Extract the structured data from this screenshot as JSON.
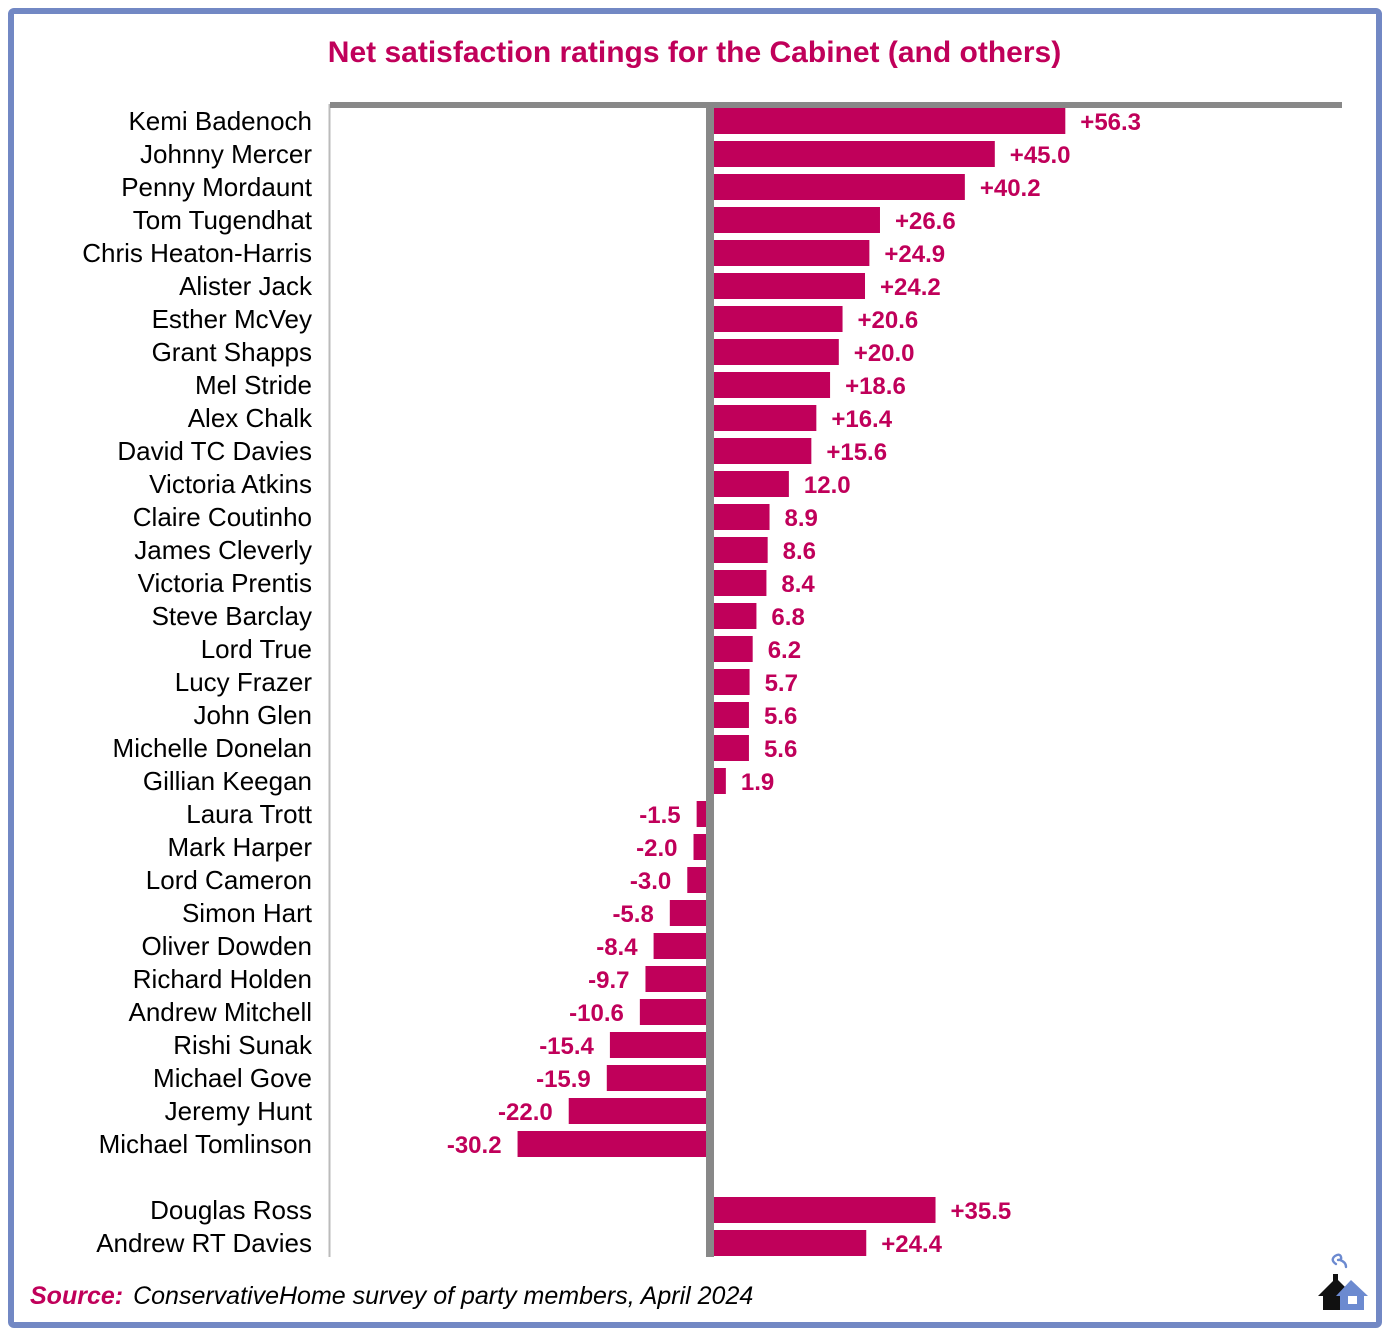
{
  "title": "Net satisfaction ratings for the Cabinet (and others)",
  "source": {
    "label": "Source:",
    "text": "ConservativeHome survey of party members, April 2024"
  },
  "logo": {
    "icon": "conservativehome-house-icon"
  },
  "colors": {
    "bar": "#C0005A",
    "title": "#C0005A",
    "axis": "#888888",
    "frame": "#7288C4"
  },
  "chart_data": {
    "type": "bar",
    "orientation": "horizontal",
    "title": "Net satisfaction ratings for the Cabinet (and others)",
    "xlabel": "",
    "ylabel": "",
    "grid": false,
    "legend": "none",
    "xlim": [
      -60,
      100
    ],
    "groups": [
      {
        "name": "Cabinet",
        "categories": [
          "Kemi Badenoch",
          "Johnny Mercer",
          "Penny Mordaunt",
          "Tom Tugendhat",
          "Chris Heaton-Harris",
          "Alister Jack",
          "Esther McVey",
          "Grant Shapps",
          "Mel Stride",
          "Alex Chalk",
          "David TC Davies",
          "Victoria Atkins",
          "Claire Coutinho",
          "James Cleverly",
          "Victoria Prentis",
          "Steve Barclay",
          "Lord True",
          "Lucy Frazer",
          "John Glen",
          "Michelle Donelan",
          "Gillian Keegan",
          "Laura Trott",
          "Mark Harper",
          "Lord Cameron",
          "Simon Hart",
          "Oliver Dowden",
          "Richard Holden",
          "Andrew Mitchell",
          "Rishi Sunak",
          "Michael Gove",
          "Jeremy Hunt",
          "Michael Tomlinson"
        ],
        "values": [
          56.3,
          45.0,
          40.2,
          26.6,
          24.9,
          24.2,
          20.6,
          20.0,
          18.6,
          16.4,
          15.6,
          12.0,
          8.9,
          8.6,
          8.4,
          6.8,
          6.2,
          5.7,
          5.6,
          5.6,
          1.9,
          -1.5,
          -2.0,
          -3.0,
          -5.8,
          -8.4,
          -9.7,
          -10.6,
          -15.4,
          -15.9,
          -22.0,
          -30.2
        ],
        "labels": [
          "+56.3",
          "+45.0",
          "+40.2",
          "+26.6",
          "+24.9",
          "+24.2",
          "+20.6",
          "+20.0",
          "+18.6",
          "+16.4",
          "+15.6",
          "12.0",
          "8.9",
          "8.6",
          "8.4",
          "6.8",
          "6.2",
          "5.7",
          "5.6",
          "5.6",
          "1.9",
          "-1.5",
          "-2.0",
          "-3.0",
          "-5.8",
          "-8.4",
          "-9.7",
          "-10.6",
          "-15.4",
          "-15.9",
          "-22.0",
          "-30.2"
        ]
      },
      {
        "name": "Others",
        "categories": [
          "Douglas Ross",
          "Andrew RT Davies"
        ],
        "values": [
          35.5,
          24.4
        ],
        "labels": [
          "+35.5",
          "+24.4"
        ]
      }
    ]
  }
}
